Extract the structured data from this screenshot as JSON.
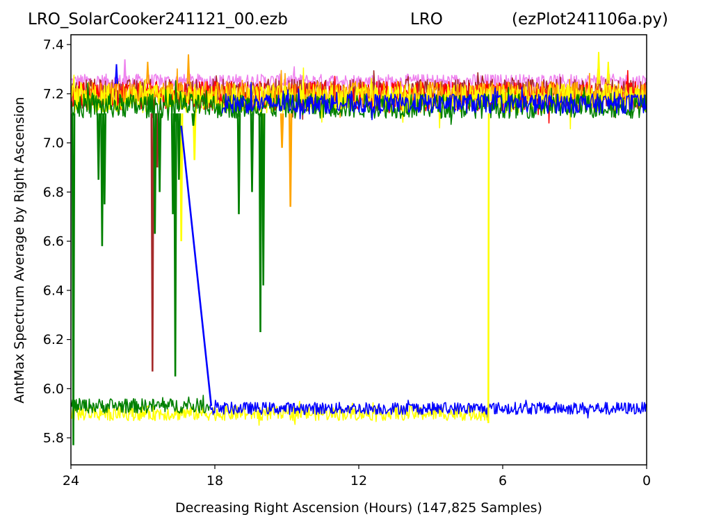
{
  "title": {
    "left": "LRO_SolarCooker241121_00.ezb",
    "center": "LRO",
    "right": "(ezPlot241106a.py)"
  },
  "chart_data": {
    "type": "line",
    "xlabel": "Decreasing Right Ascension (Hours) (147,825 Samples)",
    "ylabel": "AntMax Spectrum Average by Right Ascension",
    "xlim": [
      24,
      0
    ],
    "ylim": [
      5.69,
      7.44
    ],
    "x_ticks": [
      24,
      18,
      12,
      6,
      0
    ],
    "y_ticks": [
      5.8,
      6.0,
      6.2,
      6.4,
      6.6,
      6.8,
      7.0,
      7.2,
      7.4
    ],
    "x_tick_labels": [
      "24",
      "18",
      "12",
      "6",
      "0"
    ],
    "y_tick_labels": [
      "5.8",
      "6.0",
      "6.2",
      "6.4",
      "6.6",
      "6.8",
      "7.0",
      "7.2",
      "7.4"
    ],
    "grid": false,
    "legend": "none",
    "bands": [
      {
        "color": "#ee82ee",
        "x_range": [
          24,
          0
        ],
        "center": 7.25,
        "spread": 0.03
      },
      {
        "color": "#a52a2a",
        "x_range": [
          24,
          0
        ],
        "center": 7.2,
        "spread": 0.06
      },
      {
        "color": "#ff0000",
        "x_range": [
          24,
          0
        ],
        "center": 7.19,
        "spread": 0.06
      },
      {
        "color": "#ffa500",
        "x_range": [
          24,
          0
        ],
        "center": 7.2,
        "spread": 0.05
      },
      {
        "color": "#ffff00",
        "x_range": [
          24,
          0
        ],
        "center": 7.18,
        "spread": 0.06
      },
      {
        "color": "#ffff00",
        "x_range": [
          24,
          6.6
        ],
        "center": 5.9,
        "spread": 0.03
      },
      {
        "color": "#008000",
        "x_range": [
          24,
          18.2
        ],
        "center": 5.93,
        "spread": 0.03
      },
      {
        "color": "#008000",
        "x_range": [
          24,
          0
        ],
        "center": 7.15,
        "spread": 0.05
      },
      {
        "color": "#0000ff",
        "x_range": [
          18.2,
          0
        ],
        "center": 5.92,
        "spread": 0.025
      },
      {
        "color": "#0000ff",
        "x_range": [
          17.7,
          0
        ],
        "center": 7.16,
        "spread": 0.04
      }
    ],
    "dips": [
      {
        "color": "#ffff00",
        "x": 19.4,
        "y": 6.6
      },
      {
        "color": "#ffff00",
        "x": 18.85,
        "y": 6.93
      },
      {
        "color": "#ffff00",
        "x": 16.0,
        "y": 6.99
      },
      {
        "color": "#ffa500",
        "x": 15.2,
        "y": 6.98
      },
      {
        "color": "#ffa500",
        "x": 14.85,
        "y": 6.74
      },
      {
        "color": "#a52a2a",
        "x": 20.6,
        "y": 6.07
      },
      {
        "color": "#a52a2a",
        "x": 20.4,
        "y": 6.9
      },
      {
        "color": "#008000",
        "x": 22.85,
        "y": 6.85
      },
      {
        "color": "#008000",
        "x": 22.7,
        "y": 6.58
      },
      {
        "color": "#008000",
        "x": 22.6,
        "y": 6.75
      },
      {
        "color": "#008000",
        "x": 20.5,
        "y": 6.63
      },
      {
        "color": "#008000",
        "x": 20.3,
        "y": 6.8
      },
      {
        "color": "#008000",
        "x": 19.75,
        "y": 6.71
      },
      {
        "color": "#008000",
        "x": 19.65,
        "y": 6.05
      },
      {
        "color": "#008000",
        "x": 19.5,
        "y": 6.85
      },
      {
        "color": "#008000",
        "x": 18.9,
        "y": 7.07
      },
      {
        "color": "#008000",
        "x": 17.0,
        "y": 6.71
      },
      {
        "color": "#008000",
        "x": 16.45,
        "y": 6.8
      },
      {
        "color": "#008000",
        "x": 16.1,
        "y": 6.23
      },
      {
        "color": "#008000",
        "x": 15.98,
        "y": 6.42
      },
      {
        "color": "#008000",
        "x": 23.9,
        "y": 5.77
      }
    ],
    "connectors": [
      {
        "color": "#0000ff",
        "x": [
          19.4,
          18.15
        ],
        "y": [
          7.07,
          5.93
        ]
      },
      {
        "color": "#ffff00",
        "x": [
          6.6,
          6.58
        ],
        "y": [
          5.86,
          7.12
        ]
      }
    ],
    "spikes": [
      {
        "color": "#ffff00",
        "x": 2.0,
        "y": 7.37
      },
      {
        "color": "#ffff00",
        "x": 1.6,
        "y": 7.33
      },
      {
        "color": "#ffa500",
        "x": 19.1,
        "y": 7.36
      },
      {
        "color": "#ffa500",
        "x": 20.8,
        "y": 7.33
      },
      {
        "color": "#0000ff",
        "x": 22.1,
        "y": 7.32
      },
      {
        "color": "#ee82ee",
        "x": 21.75,
        "y": 7.34
      }
    ]
  }
}
